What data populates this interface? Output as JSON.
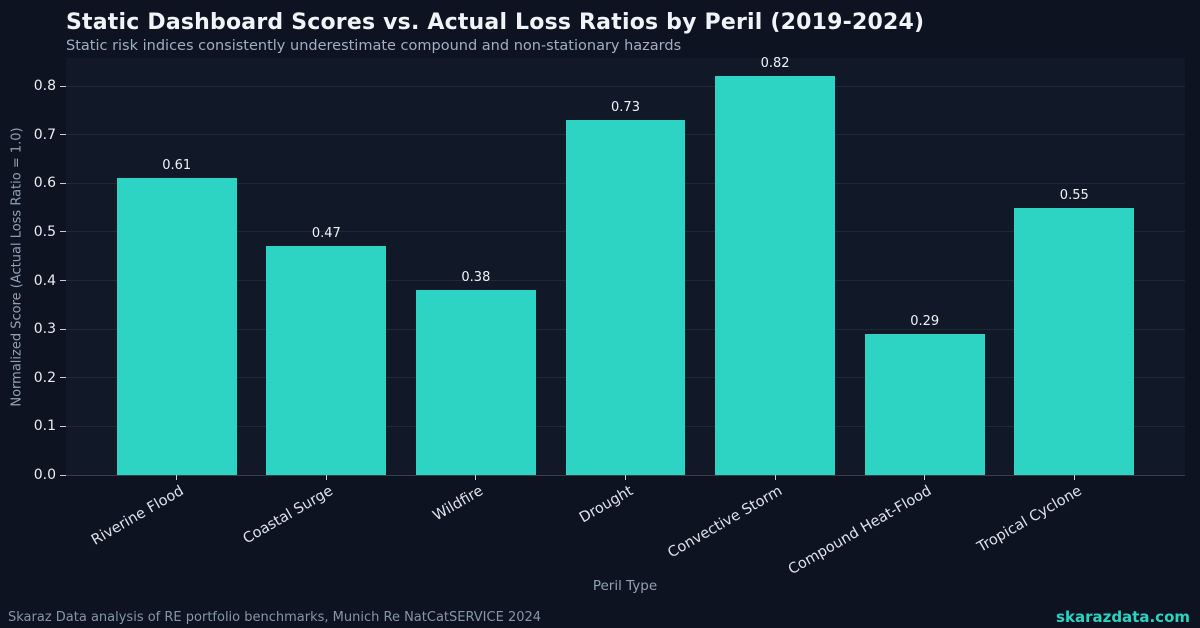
{
  "chart_data": {
    "type": "bar",
    "title": "Static Dashboard Scores vs. Actual Loss Ratios by Peril (2019-2024)",
    "subtitle": "Static risk indices consistently underestimate compound and non-stationary hazards",
    "categories": [
      "Riverine Flood",
      "Coastal Surge",
      "Wildfire",
      "Drought",
      "Convective Storm",
      "Compound Heat-Flood",
      "Tropical Cyclone"
    ],
    "values": [
      0.61,
      0.47,
      0.38,
      0.73,
      0.82,
      0.29,
      0.55
    ],
    "value_labels": [
      "0.61",
      "0.47",
      "0.38",
      "0.73",
      "0.82",
      "0.29",
      "0.55"
    ],
    "xlabel": "Peril Type",
    "ylabel": "Normalized Score (Actual Loss Ratio = 1.0)",
    "ylim": [
      0,
      0.8576
    ],
    "yticks": [
      0.0,
      0.1,
      0.2,
      0.3,
      0.4,
      0.5,
      0.6,
      0.7,
      0.8
    ],
    "grid": "horizontal",
    "legend": "none",
    "bar_color": "#2ed4c3"
  },
  "footer": {
    "source": "Skaraz Data analysis of RE portfolio benchmarks, Munich Re NatCatSERVICE 2024",
    "watermark": "skarazdata.com"
  },
  "colors": {
    "background": "#0d1320",
    "plot_background": "#111827",
    "bar": "#2ed4c3",
    "accent": "#2cd3c1",
    "title_text": "#f0f4f8",
    "subtitle_text": "#9fb0c2",
    "tick_label_text": "#e8edf2",
    "axis_label_text": "#93a1b3",
    "footer_text": "#8795a6",
    "gridline": "#1e2938"
  }
}
